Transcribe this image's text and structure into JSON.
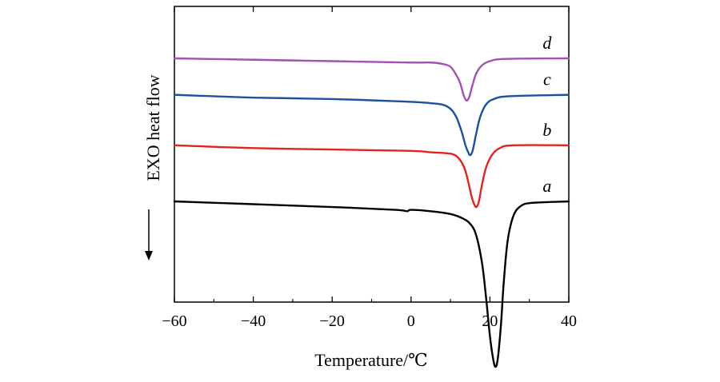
{
  "chart_data": {
    "type": "line",
    "title": "",
    "xlabel": "Temperature/℃",
    "ylabel": "EXO heat flow",
    "ylabel_arrow": "down",
    "xlim": [
      -60,
      40
    ],
    "xticks": [
      -60,
      -40,
      -20,
      0,
      20,
      40
    ],
    "xtick_labels": [
      "−60",
      "−40",
      "−20",
      "0",
      "20",
      "40"
    ],
    "y_units": "arbitrary (curves vertically offset)",
    "y_ticks_visible": false,
    "grid": false,
    "series": [
      {
        "name": "a",
        "color": "#000000",
        "baseline": 0.62,
        "points": [
          [
            -60,
            0.62
          ],
          [
            -40,
            0.61
          ],
          [
            -20,
            0.6
          ],
          [
            -4,
            0.59
          ],
          [
            -1,
            0.585
          ],
          [
            0,
            0.59
          ],
          [
            5,
            0.585
          ],
          [
            10,
            0.575
          ],
          [
            13,
            0.56
          ],
          [
            15,
            0.54
          ],
          [
            16.5,
            0.5
          ],
          [
            18,
            0.4
          ],
          [
            19,
            0.28
          ],
          [
            20,
            0.14
          ],
          [
            20.8,
            0.06
          ],
          [
            21.4,
            0.03
          ],
          [
            22,
            0.06
          ],
          [
            22.8,
            0.18
          ],
          [
            23.5,
            0.33
          ],
          [
            24.5,
            0.48
          ],
          [
            26,
            0.57
          ],
          [
            28,
            0.605
          ],
          [
            31,
            0.615
          ],
          [
            40,
            0.62
          ]
        ]
      },
      {
        "name": "b",
        "color": "#e3231e",
        "baseline": 0.82,
        "points": [
          [
            -60,
            0.82
          ],
          [
            -40,
            0.81
          ],
          [
            -20,
            0.805
          ],
          [
            0,
            0.8
          ],
          [
            5,
            0.795
          ],
          [
            10,
            0.79
          ],
          [
            12,
            0.775
          ],
          [
            13.5,
            0.74
          ],
          [
            14.5,
            0.69
          ],
          [
            15.3,
            0.64
          ],
          [
            16,
            0.61
          ],
          [
            16.6,
            0.6
          ],
          [
            17.2,
            0.62
          ],
          [
            18,
            0.68
          ],
          [
            19,
            0.74
          ],
          [
            20.5,
            0.785
          ],
          [
            22.5,
            0.81
          ],
          [
            26,
            0.82
          ],
          [
            40,
            0.82
          ]
        ]
      },
      {
        "name": "c",
        "color": "#1f4fa0",
        "baseline": 1.0,
        "points": [
          [
            -60,
            1.0
          ],
          [
            -40,
            0.99
          ],
          [
            -20,
            0.985
          ],
          [
            0,
            0.975
          ],
          [
            5,
            0.97
          ],
          [
            8,
            0.965
          ],
          [
            10,
            0.95
          ],
          [
            11.5,
            0.92
          ],
          [
            12.8,
            0.87
          ],
          [
            13.8,
            0.82
          ],
          [
            14.5,
            0.795
          ],
          [
            15,
            0.785
          ],
          [
            15.6,
            0.8
          ],
          [
            16.5,
            0.86
          ],
          [
            17.5,
            0.92
          ],
          [
            19,
            0.965
          ],
          [
            21,
            0.985
          ],
          [
            25,
            0.995
          ],
          [
            40,
            1.0
          ]
        ]
      },
      {
        "name": "d",
        "color": "#a252b0",
        "baseline": 1.13,
        "points": [
          [
            -60,
            1.13
          ],
          [
            -40,
            1.125
          ],
          [
            -20,
            1.12
          ],
          [
            0,
            1.115
          ],
          [
            5,
            1.115
          ],
          [
            8,
            1.11
          ],
          [
            10,
            1.1
          ],
          [
            11.5,
            1.07
          ],
          [
            12.5,
            1.04
          ],
          [
            13.3,
            1.0
          ],
          [
            14,
            0.98
          ],
          [
            14.7,
            0.99
          ],
          [
            15.5,
            1.03
          ],
          [
            16.5,
            1.075
          ],
          [
            18,
            1.105
          ],
          [
            20,
            1.12
          ],
          [
            24,
            1.128
          ],
          [
            40,
            1.13
          ]
        ]
      }
    ],
    "annotations": [
      {
        "text": "a",
        "series": "a"
      },
      {
        "text": "b",
        "series": "b"
      },
      {
        "text": "c",
        "series": "c"
      },
      {
        "text": "d",
        "series": "d"
      }
    ]
  }
}
